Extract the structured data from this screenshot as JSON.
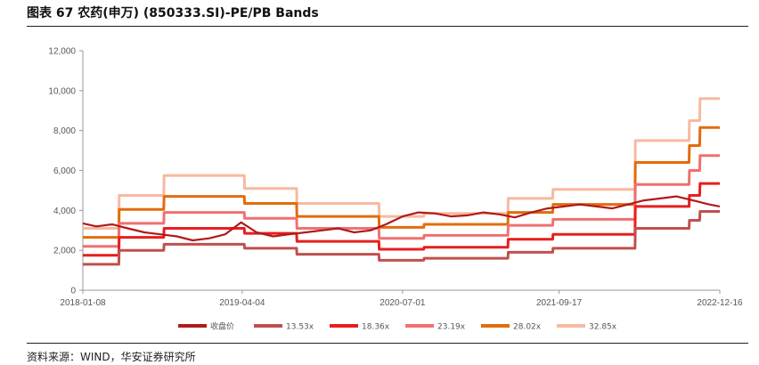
{
  "title": "图表 67  农药(申万) (850333.SI)-PE/PB Bands",
  "source": "资料来源：WIND，华安证券研究所",
  "chart_data": {
    "type": "line",
    "title": "图表 67  农药(申万) (850333.SI)-PE/PB Bands",
    "xlabel": "",
    "ylabel": "",
    "ylim": [
      0,
      12000
    ],
    "yticks": [
      0,
      2000,
      4000,
      6000,
      8000,
      10000,
      12000
    ],
    "ytick_labels": [
      "0",
      "2,000",
      "4,000",
      "6,000",
      "8,000",
      "10,000",
      "12,000"
    ],
    "xtick_labels": [
      "2018-01-08",
      "2019-04-04",
      "2020-07-01",
      "2021-09-17",
      "2022-12-16"
    ],
    "xlim": [
      "2018-01-08",
      "2022-12-16"
    ],
    "legend_position": "bottom",
    "grid": false,
    "series": [
      {
        "name": "收盘价",
        "color": "#b01a1a",
        "x": [
          "2018-01-08",
          "2018-02-15",
          "2018-04-01",
          "2018-05-15",
          "2018-07-01",
          "2018-08-15",
          "2018-10-01",
          "2018-11-15",
          "2019-01-01",
          "2019-02-15",
          "2019-04-01",
          "2019-05-15",
          "2019-07-01",
          "2019-08-15",
          "2019-10-01",
          "2019-11-15",
          "2020-01-01",
          "2020-02-15",
          "2020-04-01",
          "2020-05-15",
          "2020-07-01",
          "2020-08-15",
          "2020-10-01",
          "2020-11-15",
          "2021-01-01",
          "2021-02-15",
          "2021-04-01",
          "2021-05-15",
          "2021-07-01",
          "2021-08-15",
          "2021-10-01",
          "2021-11-15",
          "2022-01-01",
          "2022-02-15",
          "2022-04-01",
          "2022-05-15",
          "2022-07-01",
          "2022-08-15",
          "2022-10-01",
          "2022-11-15",
          "2022-12-16"
        ],
        "values": [
          3350,
          3200,
          3300,
          3100,
          2900,
          2800,
          2700,
          2500,
          2600,
          2800,
          3400,
          2900,
          2700,
          2800,
          2900,
          3000,
          3100,
          2900,
          3000,
          3300,
          3700,
          3900,
          3850,
          3700,
          3750,
          3900,
          3800,
          3650,
          3900,
          4100,
          4200,
          4300,
          4200,
          4100,
          4300,
          4500,
          4600,
          4700,
          4500,
          4300,
          4200
        ]
      },
      {
        "name": "13.53x",
        "color": "#c0504d",
        "x": [
          "2018-01-08",
          "2018-04-20",
          "2018-04-21",
          "2018-08-25",
          "2018-08-26",
          "2019-04-10",
          "2019-04-11",
          "2019-09-05",
          "2019-09-06",
          "2020-04-25",
          "2020-04-26",
          "2020-08-30",
          "2020-08-31",
          "2021-04-25",
          "2021-04-26",
          "2021-08-30",
          "2021-08-31",
          "2022-04-20",
          "2022-04-21",
          "2022-09-20",
          "2022-09-21",
          "2022-10-20",
          "2022-10-21",
          "2022-12-16"
        ],
        "values": [
          1300,
          1300,
          2000,
          2000,
          2300,
          2300,
          2100,
          2100,
          1800,
          1800,
          1500,
          1500,
          1600,
          1600,
          1900,
          1900,
          2100,
          2100,
          3100,
          3100,
          3500,
          3500,
          3950,
          3950
        ]
      },
      {
        "name": "18.36x",
        "color": "#e81e1e",
        "x": [
          "2018-01-08",
          "2018-04-20",
          "2018-04-21",
          "2018-08-25",
          "2018-08-26",
          "2019-04-10",
          "2019-04-11",
          "2019-09-05",
          "2019-09-06",
          "2020-04-25",
          "2020-04-26",
          "2020-08-30",
          "2020-08-31",
          "2021-04-25",
          "2021-04-26",
          "2021-08-30",
          "2021-08-31",
          "2022-04-20",
          "2022-04-21",
          "2022-09-20",
          "2022-09-21",
          "2022-10-20",
          "2022-10-21",
          "2022-12-16"
        ],
        "values": [
          1750,
          1750,
          2650,
          2650,
          3100,
          3100,
          2850,
          2850,
          2450,
          2450,
          2050,
          2050,
          2150,
          2150,
          2550,
          2550,
          2800,
          2800,
          4200,
          4200,
          4750,
          4750,
          5350,
          5350
        ]
      },
      {
        "name": "23.19x",
        "color": "#f07070",
        "x": [
          "2018-01-08",
          "2018-04-20",
          "2018-04-21",
          "2018-08-25",
          "2018-08-26",
          "2019-04-10",
          "2019-04-11",
          "2019-09-05",
          "2019-09-06",
          "2020-04-25",
          "2020-04-26",
          "2020-08-30",
          "2020-08-31",
          "2021-04-25",
          "2021-04-26",
          "2021-08-30",
          "2021-08-31",
          "2022-04-20",
          "2022-04-21",
          "2022-09-20",
          "2022-09-21",
          "2022-10-20",
          "2022-10-21",
          "2022-12-16"
        ],
        "values": [
          2200,
          2200,
          3350,
          3350,
          3900,
          3900,
          3600,
          3600,
          3100,
          3100,
          2600,
          2600,
          2750,
          2750,
          3250,
          3250,
          3550,
          3550,
          5300,
          5300,
          6000,
          6000,
          6750,
          6750
        ]
      },
      {
        "name": "28.02x",
        "color": "#e36c0a",
        "x": [
          "2018-01-08",
          "2018-04-20",
          "2018-04-21",
          "2018-08-25",
          "2018-08-26",
          "2019-04-10",
          "2019-04-11",
          "2019-09-05",
          "2019-09-06",
          "2020-04-25",
          "2020-04-26",
          "2020-08-30",
          "2020-08-31",
          "2021-04-25",
          "2021-04-26",
          "2021-08-30",
          "2021-08-31",
          "2022-04-20",
          "2022-04-21",
          "2022-09-20",
          "2022-09-21",
          "2022-10-20",
          "2022-10-21",
          "2022-12-16"
        ],
        "values": [
          2650,
          2650,
          4050,
          4050,
          4700,
          4700,
          4350,
          4350,
          3700,
          3700,
          3150,
          3150,
          3300,
          3300,
          3900,
          3900,
          4300,
          4300,
          6400,
          6400,
          7250,
          7250,
          8150,
          8150
        ]
      },
      {
        "name": "32.85x",
        "color": "#f7b9a0",
        "x": [
          "2018-01-08",
          "2018-04-20",
          "2018-04-21",
          "2018-08-25",
          "2018-08-26",
          "2019-04-10",
          "2019-04-11",
          "2019-09-05",
          "2019-09-06",
          "2020-04-25",
          "2020-04-26",
          "2020-08-30",
          "2020-08-31",
          "2021-04-25",
          "2021-04-26",
          "2021-08-30",
          "2021-08-31",
          "2022-04-20",
          "2022-04-21",
          "2022-09-20",
          "2022-09-21",
          "2022-10-20",
          "2022-10-21",
          "2022-12-16"
        ],
        "values": [
          3100,
          3100,
          4750,
          4750,
          5750,
          5750,
          5100,
          5100,
          4350,
          4350,
          3700,
          3700,
          3850,
          3850,
          4600,
          4600,
          5050,
          5050,
          7500,
          7500,
          8500,
          8500,
          9600,
          9600
        ]
      }
    ]
  }
}
